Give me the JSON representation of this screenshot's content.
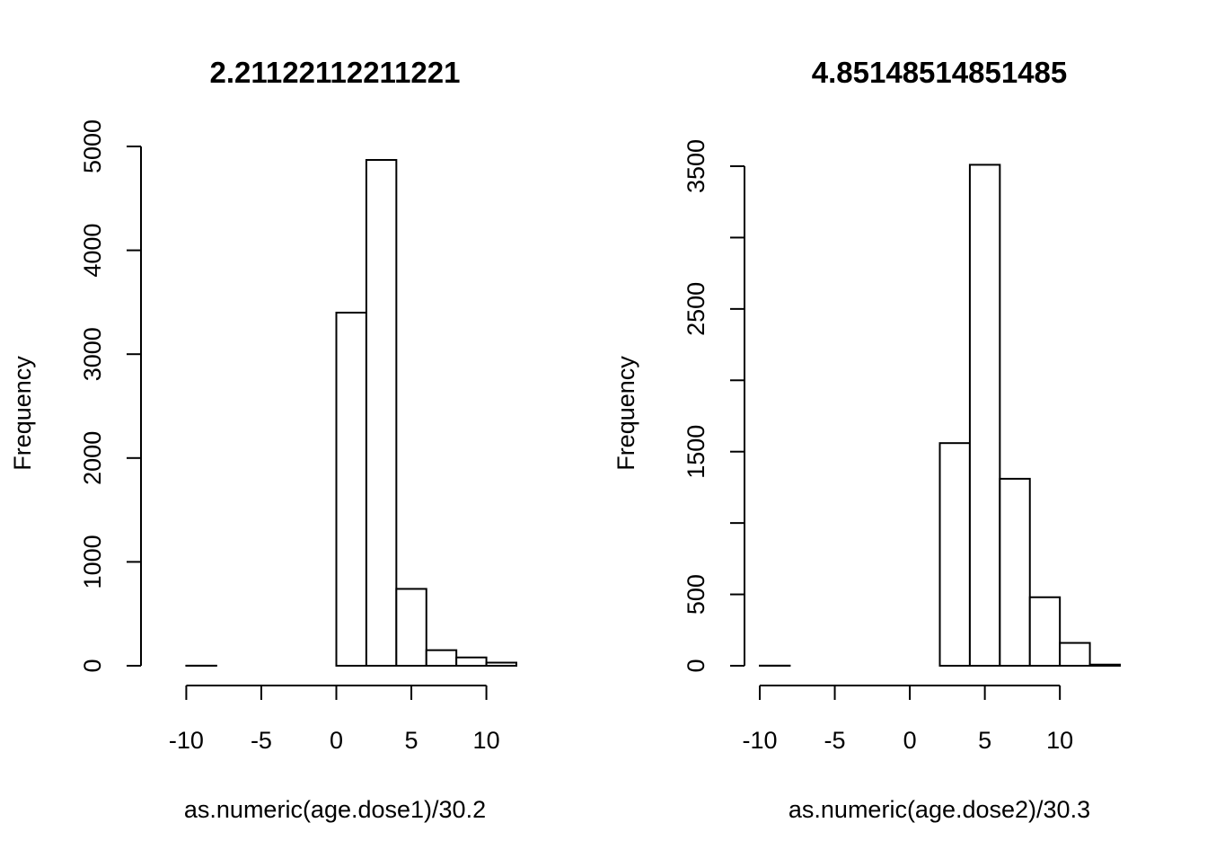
{
  "chart_data": [
    {
      "type": "bar",
      "title": "2.21122112211221",
      "xlabel": "as.numeric(age.dose1)/30.2",
      "ylabel": "Frequency",
      "xlim": [
        -12,
        12
      ],
      "ylim": [
        0,
        5000
      ],
      "x_ticks": [
        -10,
        -5,
        0,
        5,
        10
      ],
      "x_tick_labels": [
        "-10",
        "-5",
        "0",
        "5",
        "10"
      ],
      "y_ticks": [
        0,
        1000,
        2000,
        3000,
        4000,
        5000
      ],
      "y_tick_labels": [
        "0",
        "1000",
        "2000",
        "3000",
        "4000",
        "5000"
      ],
      "bin_edges": [
        -10,
        -8,
        -6,
        -4,
        -2,
        0,
        2,
        4,
        6,
        8,
        10,
        12
      ],
      "values": [
        1,
        0,
        0,
        0,
        0,
        3400,
        4870,
        740,
        150,
        80,
        30
      ],
      "grid": false,
      "legend": "none",
      "bar_fill": "#ffffff",
      "bar_stroke": "#000000"
    },
    {
      "type": "bar",
      "title": "4.85148514851485",
      "xlabel": "as.numeric(age.dose2)/30.3",
      "ylabel": "Frequency",
      "xlim": [
        -10,
        14
      ],
      "ylim": [
        0,
        3500
      ],
      "x_ticks": [
        -10,
        -5,
        0,
        5,
        10
      ],
      "x_tick_labels": [
        "-10",
        "-5",
        "0",
        "5",
        "10"
      ],
      "y_ticks": [
        0,
        500,
        1000,
        1500,
        2000,
        2500,
        3000,
        3500
      ],
      "y_tick_labels": [
        "0",
        "500",
        "",
        "1500",
        "",
        "2500",
        "",
        "3500"
      ],
      "bin_edges": [
        -10,
        -8,
        -6,
        -4,
        -2,
        0,
        2,
        4,
        6,
        8,
        10,
        12,
        14
      ],
      "values": [
        1,
        0,
        0,
        0,
        0,
        0,
        1560,
        3510,
        1310,
        480,
        160,
        8
      ],
      "grid": false,
      "legend": "none",
      "bar_fill": "#ffffff",
      "bar_stroke": "#000000"
    }
  ]
}
